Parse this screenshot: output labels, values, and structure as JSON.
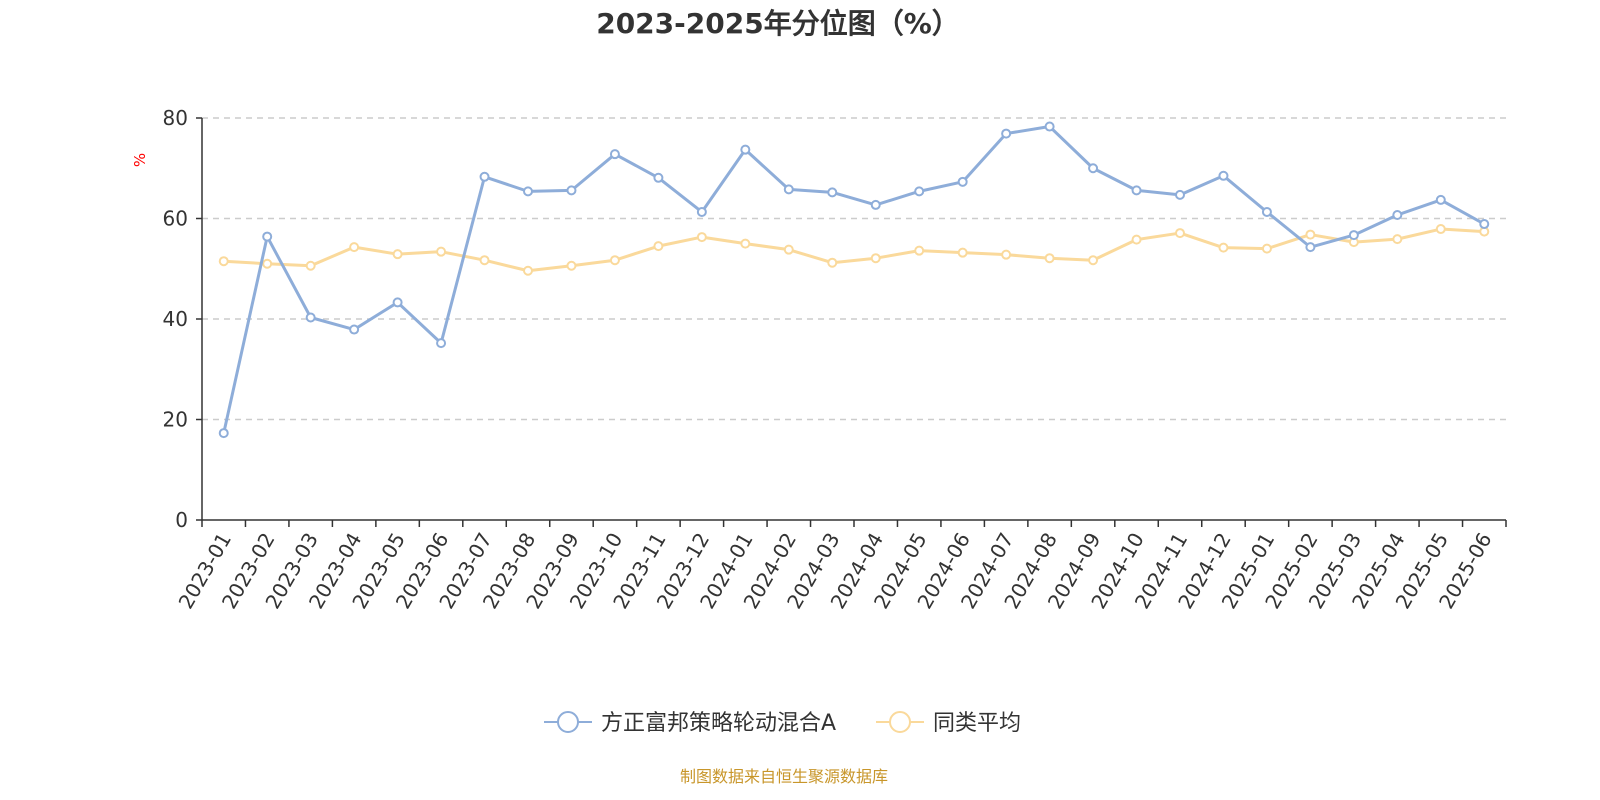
{
  "chart_data": {
    "type": "line",
    "title": "2023-2025年分位图（%）",
    "ylabel": "%",
    "xlabel": "",
    "ylim": [
      0,
      80
    ],
    "yticks": [
      0,
      20,
      40,
      60,
      80
    ],
    "grid": true,
    "legend_position": "bottom",
    "categories": [
      "2023-01",
      "2023-02",
      "2023-03",
      "2023-04",
      "2023-05",
      "2023-06",
      "2023-07",
      "2023-08",
      "2023-09",
      "2023-10",
      "2023-11",
      "2023-12",
      "2024-01",
      "2024-02",
      "2024-03",
      "2024-04",
      "2024-05",
      "2024-06",
      "2024-07",
      "2024-08",
      "2024-09",
      "2024-10",
      "2024-11",
      "2024-12",
      "2025-01",
      "2025-02",
      "2025-03",
      "2025-04",
      "2025-05",
      "2025-06"
    ],
    "series": [
      {
        "name": "方正富邦策略轮动混合A",
        "color": "#8eadd9",
        "values": [
          17.3,
          56.4,
          40.3,
          37.9,
          43.3,
          35.2,
          68.3,
          65.4,
          65.6,
          72.8,
          68.1,
          61.3,
          73.7,
          65.8,
          65.2,
          62.7,
          65.4,
          67.3,
          76.9,
          78.3,
          70.0,
          65.6,
          64.7,
          68.5,
          61.3,
          54.3,
          56.7,
          60.7,
          63.7,
          58.9
        ]
      },
      {
        "name": "同类平均",
        "color": "#fad99b",
        "values": [
          51.5,
          51.0,
          50.6,
          54.3,
          52.9,
          53.4,
          51.7,
          49.6,
          50.6,
          51.7,
          54.5,
          56.3,
          55.0,
          53.8,
          51.2,
          52.1,
          53.6,
          53.2,
          52.8,
          52.1,
          51.7,
          55.8,
          57.1,
          54.2,
          54.0,
          56.8,
          55.3,
          55.9,
          57.9,
          57.4
        ]
      }
    ]
  },
  "source": "制图数据来自恒生聚源数据库"
}
